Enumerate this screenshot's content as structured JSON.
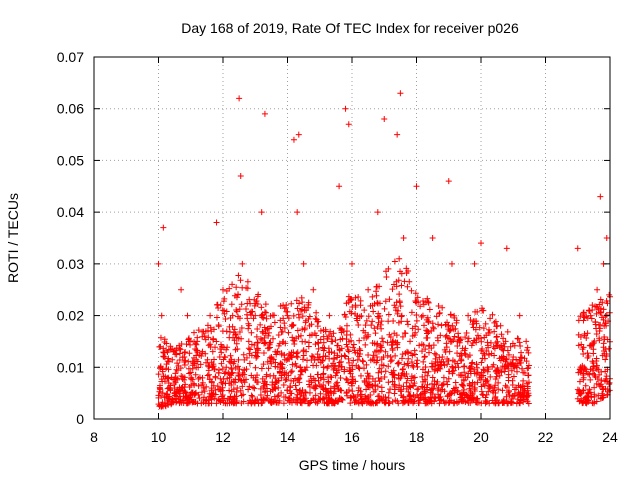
{
  "chart_data": {
    "type": "scatter",
    "title": "Day 168 of 2019, Rate Of TEC Index for receiver p026",
    "xlabel": "GPS time / hours",
    "ylabel": "ROTI / TECUs",
    "xlim": [
      8,
      24
    ],
    "ylim": [
      0,
      0.07
    ],
    "x_ticks": [
      8,
      10,
      12,
      14,
      16,
      18,
      20,
      22,
      24
    ],
    "y_ticks": [
      0,
      0.01,
      0.02,
      0.03,
      0.04,
      0.05,
      0.06,
      0.07
    ],
    "x_tick_labels": [
      "8",
      "10",
      "12",
      "14",
      "16",
      "18",
      "20",
      "22",
      "24"
    ],
    "y_tick_labels": [
      "0",
      "0.01",
      "0.02",
      "0.03",
      "0.04",
      "0.05",
      "0.06",
      "0.07"
    ],
    "grid": true,
    "marker": "+",
    "series": [
      {
        "name": "p026",
        "color": "#ff0000",
        "x": [
          10.0,
          10.1,
          10.15,
          10.2,
          10.3,
          10.5,
          10.7,
          10.8,
          10.9,
          11.0,
          11.2,
          11.4,
          11.6,
          11.8,
          11.9,
          12.0,
          12.1,
          12.3,
          12.5,
          12.55,
          12.6,
          12.8,
          13.0,
          13.2,
          13.3,
          13.5,
          13.8,
          14.0,
          14.2,
          14.3,
          14.35,
          14.5,
          14.6,
          14.8,
          15.0,
          15.3,
          15.6,
          15.8,
          15.9,
          16.0,
          16.2,
          16.5,
          16.8,
          17.0,
          17.2,
          17.4,
          17.5,
          17.6,
          17.8,
          18.0,
          18.2,
          18.5,
          18.8,
          19.0,
          19.1,
          19.3,
          19.6,
          19.8,
          20.0,
          20.2,
          20.5,
          20.8,
          21.0,
          21.2,
          21.4,
          23.0,
          23.2,
          23.4,
          23.6,
          23.7,
          23.8,
          23.9
        ],
        "y": [
          0.03,
          0.02,
          0.037,
          0.012,
          0.008,
          0.006,
          0.025,
          0.012,
          0.02,
          0.009,
          0.015,
          0.006,
          0.02,
          0.038,
          0.012,
          0.025,
          0.01,
          0.02,
          0.062,
          0.047,
          0.03,
          0.015,
          0.02,
          0.04,
          0.059,
          0.012,
          0.01,
          0.02,
          0.054,
          0.04,
          0.055,
          0.03,
          0.01,
          0.025,
          0.012,
          0.02,
          0.045,
          0.06,
          0.057,
          0.03,
          0.01,
          0.025,
          0.04,
          0.058,
          0.012,
          0.055,
          0.063,
          0.035,
          0.015,
          0.045,
          0.02,
          0.035,
          0.012,
          0.046,
          0.03,
          0.01,
          0.02,
          0.03,
          0.034,
          0.01,
          0.018,
          0.033,
          0.012,
          0.02,
          0.015,
          0.033,
          0.01,
          0.02,
          0.025,
          0.043,
          0.03,
          0.035
        ],
        "density_envelope": {
          "description": "Dense point cloud; upper envelope of ROTI by hour bin",
          "hours": [
            10.0,
            10.5,
            11.0,
            11.5,
            12.0,
            12.5,
            13.0,
            13.5,
            14.0,
            14.5,
            15.0,
            15.5,
            16.0,
            16.5,
            17.0,
            17.5,
            18.0,
            18.5,
            19.0,
            19.5,
            20.0,
            20.5,
            21.0,
            21.5,
            23.0,
            23.5,
            24.0
          ],
          "typical": [
            0.012,
            0.01,
            0.012,
            0.013,
            0.018,
            0.02,
            0.018,
            0.015,
            0.016,
            0.018,
            0.014,
            0.012,
            0.018,
            0.016,
            0.02,
            0.022,
            0.018,
            0.016,
            0.015,
            0.013,
            0.016,
            0.014,
            0.012,
            0.01,
            0.014,
            0.016,
            0.018
          ],
          "minimum": [
            0.002,
            0.003,
            0.003,
            0.003,
            0.003,
            0.003,
            0.003,
            0.003,
            0.003,
            0.003,
            0.003,
            0.003,
            0.003,
            0.003,
            0.003,
            0.003,
            0.003,
            0.003,
            0.003,
            0.003,
            0.003,
            0.003,
            0.003,
            0.003,
            0.003,
            0.003,
            0.005
          ]
        }
      }
    ]
  }
}
